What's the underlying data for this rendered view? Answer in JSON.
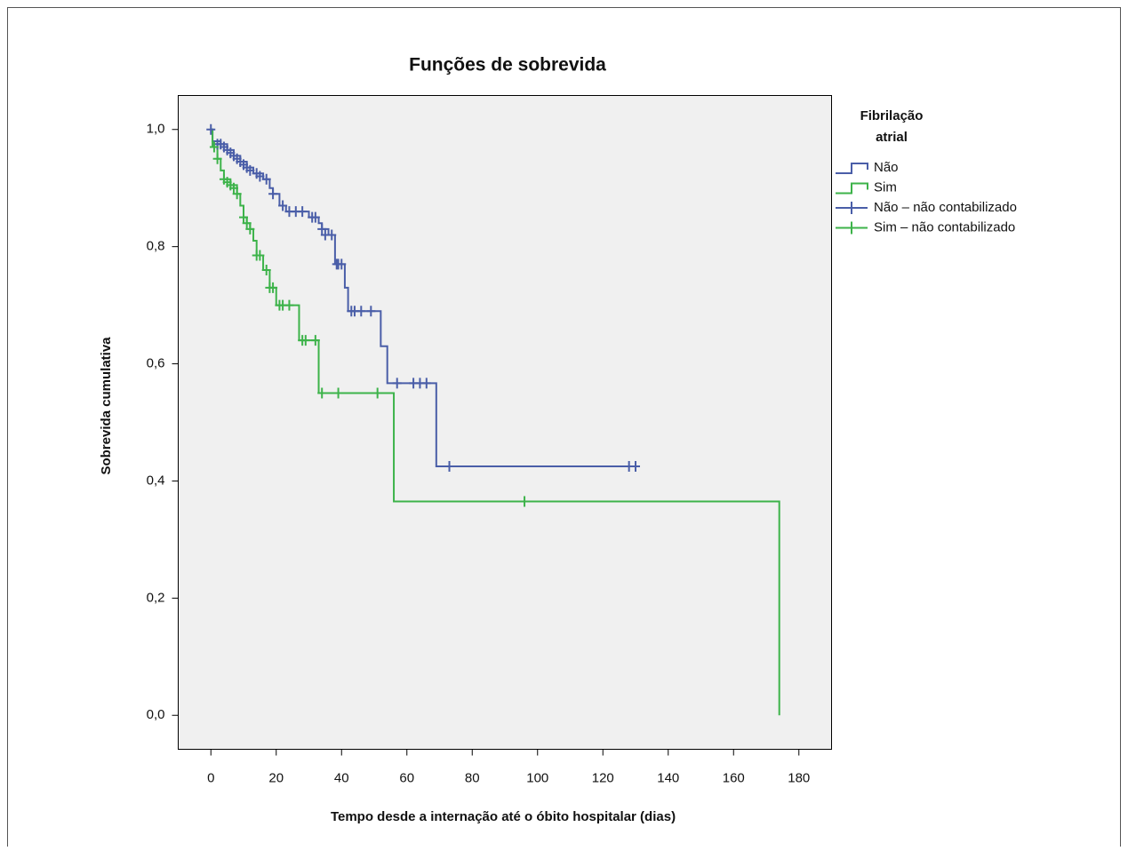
{
  "chart_data": {
    "type": "step",
    "title": "Funções de sobrevida",
    "x_label": "Tempo desde a internação até o óbito hospitalar (dias)",
    "y_label": "Sobrevida cumulativa",
    "legend_title": [
      "Fibrilação",
      "atrial"
    ],
    "legend_position": "right",
    "xlim": [
      -10,
      190
    ],
    "ylim": [
      -0.058,
      1.058
    ],
    "xticks": [
      0,
      20,
      40,
      60,
      80,
      100,
      120,
      140,
      160,
      180
    ],
    "yticks": [
      {
        "value": 0,
        "label": "0,0"
      },
      {
        "value": 0.2,
        "label": "0,2"
      },
      {
        "value": 0.4,
        "label": "0,4"
      },
      {
        "value": 0.6,
        "label": "0,6"
      },
      {
        "value": 0.8,
        "label": "0,8"
      },
      {
        "value": 1,
        "label": "1,0"
      }
    ],
    "series": [
      {
        "name": "Não",
        "color": "#4a5ea8",
        "kind": "step",
        "x": [
          0,
          0.5,
          3,
          5,
          7,
          9,
          11,
          13,
          16,
          18,
          19,
          21,
          23,
          30,
          33,
          34,
          36,
          38,
          41,
          42,
          52,
          54,
          69,
          130
        ],
        "values": [
          1.0,
          0.98,
          0.975,
          0.965,
          0.955,
          0.945,
          0.935,
          0.925,
          0.915,
          0.9,
          0.89,
          0.87,
          0.86,
          0.85,
          0.84,
          0.83,
          0.82,
          0.77,
          0.73,
          0.69,
          0.63,
          0.567,
          0.425,
          0.425
        ]
      },
      {
        "name": "Sim",
        "color": "#3db34a",
        "kind": "step",
        "x": [
          0,
          0.5,
          2,
          3,
          4,
          6,
          8,
          9,
          10,
          11,
          12,
          13,
          14,
          16,
          18,
          20,
          27,
          33,
          56,
          174
        ],
        "values": [
          1.0,
          0.97,
          0.95,
          0.93,
          0.915,
          0.905,
          0.89,
          0.87,
          0.85,
          0.84,
          0.83,
          0.81,
          0.785,
          0.76,
          0.73,
          0.7,
          0.64,
          0.55,
          0.365,
          0.0
        ]
      },
      {
        "name": "Não – não contabilizado",
        "color": "#4a5ea8",
        "kind": "censor",
        "x": [
          0,
          2,
          3,
          4,
          5,
          6,
          7,
          8,
          9,
          10,
          11,
          12,
          14,
          15,
          17,
          19,
          22,
          24,
          26,
          28,
          31,
          32,
          34,
          35,
          37,
          38.5,
          39,
          40,
          43,
          44,
          46,
          49,
          57,
          62,
          64,
          66,
          73,
          128,
          130
        ],
        "values": [
          1.0,
          0.975,
          0.975,
          0.97,
          0.965,
          0.96,
          0.955,
          0.95,
          0.945,
          0.94,
          0.935,
          0.93,
          0.925,
          0.92,
          0.915,
          0.89,
          0.87,
          0.86,
          0.86,
          0.86,
          0.85,
          0.85,
          0.83,
          0.82,
          0.82,
          0.77,
          0.77,
          0.77,
          0.69,
          0.69,
          0.69,
          0.69,
          0.567,
          0.567,
          0.567,
          0.567,
          0.425,
          0.425,
          0.425
        ]
      },
      {
        "name": "Sim – não contabilizado",
        "color": "#3db34a",
        "kind": "censor",
        "x": [
          1,
          2,
          4,
          5,
          6,
          7,
          8,
          10,
          11,
          12,
          14,
          15,
          17,
          18,
          19,
          21,
          22,
          24,
          28,
          29,
          32,
          34,
          39,
          51,
          96
        ],
        "values": [
          0.97,
          0.95,
          0.915,
          0.91,
          0.905,
          0.9,
          0.89,
          0.85,
          0.84,
          0.83,
          0.785,
          0.785,
          0.76,
          0.73,
          0.73,
          0.7,
          0.7,
          0.7,
          0.64,
          0.64,
          0.64,
          0.55,
          0.55,
          0.55,
          0.365
        ]
      }
    ]
  }
}
